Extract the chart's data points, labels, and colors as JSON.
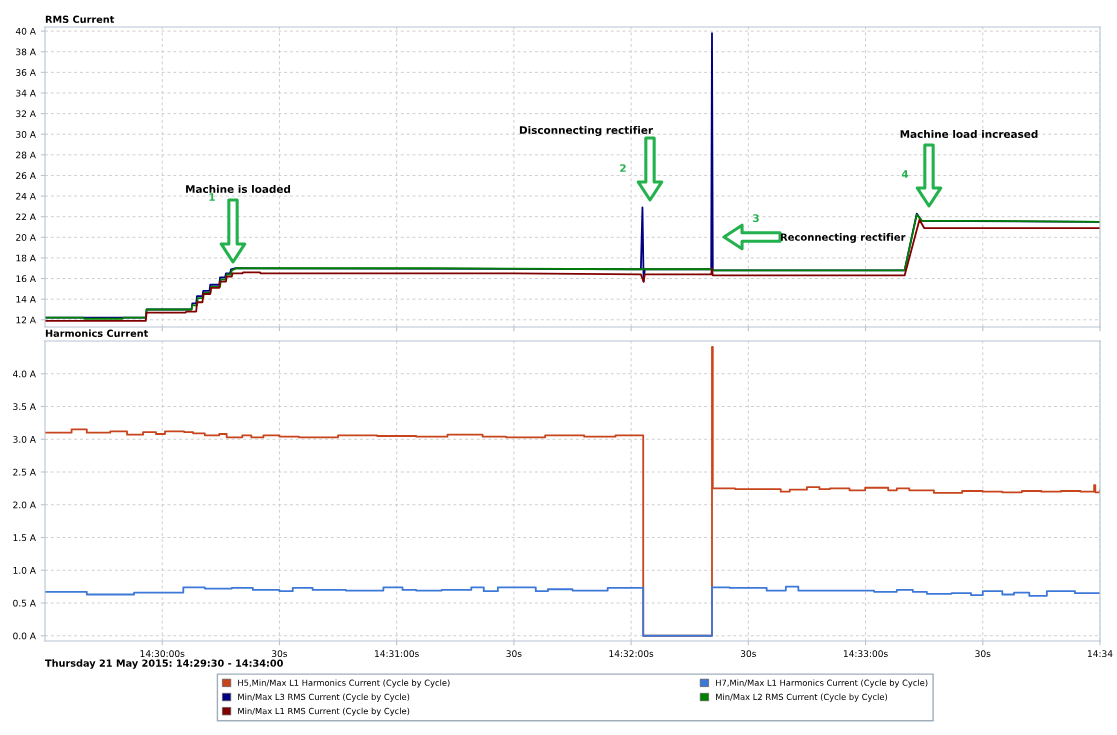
{
  "chart_data": [
    {
      "type": "line",
      "title": "RMS Current",
      "xlim": [
        "2015-05-21T14:29:30",
        "2015-05-21T14:34:00"
      ],
      "ylim": [
        11.3,
        40.4
      ],
      "xticks": [
        {
          "value": "2015-05-21T14:30:00",
          "label": null
        },
        {
          "value": "2015-05-21T14:30:30",
          "label": null
        },
        {
          "value": "2015-05-21T14:31:00",
          "label": null
        },
        {
          "value": "2015-05-21T14:31:30",
          "label": null
        },
        {
          "value": "2015-05-21T14:32:00",
          "label": null
        },
        {
          "value": "2015-05-21T14:32:30",
          "label": null
        },
        {
          "value": "2015-05-21T14:33:00",
          "label": null
        },
        {
          "value": "2015-05-21T14:33:30",
          "label": null
        },
        {
          "value": "2015-05-21T14:34:00",
          "label": null
        }
      ],
      "yticks": [
        {
          "value": 12,
          "label": "12 A"
        },
        {
          "value": 14,
          "label": "14 A"
        },
        {
          "value": 16,
          "label": "16 A"
        },
        {
          "value": 18,
          "label": "18 A"
        },
        {
          "value": 20,
          "label": "20 A"
        },
        {
          "value": 22,
          "label": "22 A"
        },
        {
          "value": 24,
          "label": "24 A"
        },
        {
          "value": 26,
          "label": "26 A"
        },
        {
          "value": 28,
          "label": "28 A"
        },
        {
          "value": 30,
          "label": "30 A"
        },
        {
          "value": 32,
          "label": "32 A"
        },
        {
          "value": 34,
          "label": "34 A"
        },
        {
          "value": 36,
          "label": "36 A"
        },
        {
          "value": 38,
          "label": "38 A"
        },
        {
          "value": 40,
          "label": "40 A"
        }
      ],
      "tick_labels": "y",
      "grid": true,
      "legend": "bottom",
      "series": [
        {
          "name": "Min/Max L3 RMS Current (Cycle by Cycle)",
          "color": "#000080",
          "x": [
            "2015-05-21T14:29:30",
            "2015-05-21T14:29:55.8",
            "2015-05-21T14:29:56",
            "2015-05-21T14:30:07.5",
            "2015-05-21T14:30:07.7",
            "2015-05-21T14:30:08.7",
            "2015-05-21T14:30:08.9",
            "2015-05-21T14:30:10.3",
            "2015-05-21T14:30:10.5",
            "2015-05-21T14:30:12.1",
            "2015-05-21T14:30:12.3",
            "2015-05-21T14:30:14.6",
            "2015-05-21T14:30:14.8",
            "2015-05-21T14:30:16.1",
            "2015-05-21T14:30:16.3",
            "2015-05-21T14:30:17.4",
            "2015-05-21T14:30:17.6",
            "2015-05-21T14:30:18.8",
            "2015-05-21T14:32:02.5",
            "2015-05-21T14:32:02.9",
            "2015-05-21T14:32:03.2",
            "2015-05-21T14:32:03.5",
            "2015-05-21T14:32:20.5",
            "2015-05-21T14:32:20.7",
            "2015-05-21T14:32:20.9",
            "2015-05-21T14:33:10",
            "2015-05-21T14:33:13.1",
            "2015-05-21T14:33:14.3",
            "2015-05-21T14:34:00"
          ],
          "values": [
            12.2,
            12.2,
            13.0,
            13.0,
            13.6,
            13.6,
            14.3,
            14.3,
            14.8,
            14.8,
            15.4,
            15.4,
            16.1,
            16.1,
            16.5,
            16.5,
            16.9,
            17.0,
            16.9,
            22.9,
            15.7,
            16.9,
            16.9,
            39.8,
            16.8,
            16.8,
            22.3,
            21.6,
            21.5
          ]
        },
        {
          "name": "Min/Max L2 RMS Current (Cycle by Cycle)",
          "color": "#008000",
          "x": [
            "2015-05-21T14:29:30",
            "2015-05-21T14:29:39.8",
            "2015-05-21T14:29:40",
            "2015-05-21T14:29:49.8",
            "2015-05-21T14:29:50",
            "2015-05-21T14:29:55.8",
            "2015-05-21T14:29:56",
            "2015-05-21T14:30:07.5",
            "2015-05-21T14:30:07.7",
            "2015-05-21T14:30:08.9",
            "2015-05-21T14:30:09.1",
            "2015-05-21T14:30:10.5",
            "2015-05-21T14:30:10.7",
            "2015-05-21T14:30:12.3",
            "2015-05-21T14:30:12.5",
            "2015-05-21T14:30:14.8",
            "2015-05-21T14:30:15",
            "2015-05-21T14:30:16.3",
            "2015-05-21T14:30:16.5",
            "2015-05-21T14:30:17.6",
            "2015-05-21T14:30:17.8",
            "2015-05-21T14:30:19",
            "2015-05-21T14:31:10",
            "2015-05-21T14:32:00",
            "2015-05-21T14:32:20.5",
            "2015-05-21T14:32:20.9",
            "2015-05-21T14:33:10",
            "2015-05-21T14:33:13.1",
            "2015-05-21T14:33:14.5",
            "2015-05-21T14:33:30",
            "2015-05-21T14:34:00"
          ],
          "values": [
            12.2,
            12.2,
            12.1,
            12.1,
            12.2,
            12.2,
            13.0,
            13.0,
            13.4,
            13.4,
            14.1,
            14.1,
            14.6,
            14.6,
            15.2,
            15.2,
            15.9,
            15.9,
            16.4,
            16.4,
            16.8,
            17.0,
            17.0,
            16.9,
            16.9,
            16.8,
            16.8,
            22.2,
            21.6,
            21.6,
            21.5
          ]
        },
        {
          "name": "Min/Max L1 RMS Current (Cycle by Cycle)",
          "color": "#800000",
          "x": [
            "2015-05-21T14:29:30",
            "2015-05-21T14:29:55.8",
            "2015-05-21T14:29:56",
            "2015-05-21T14:30:06",
            "2015-05-21T14:30:06.2",
            "2015-05-21T14:30:08.7",
            "2015-05-21T14:30:08.9",
            "2015-05-21T14:30:10.3",
            "2015-05-21T14:30:10.5",
            "2015-05-21T14:30:12.3",
            "2015-05-21T14:30:12.5",
            "2015-05-21T14:30:14.6",
            "2015-05-21T14:30:14.8",
            "2015-05-21T14:30:16.3",
            "2015-05-21T14:30:16.5",
            "2015-05-21T14:30:17.8",
            "2015-05-21T14:30:18",
            "2015-05-21T14:30:20.5",
            "2015-05-21T14:30:20.7",
            "2015-05-21T14:30:25",
            "2015-05-21T14:30:25.2",
            "2015-05-21T14:31:30",
            "2015-05-21T14:32:02.5",
            "2015-05-21T14:32:03.2",
            "2015-05-21T14:32:03.5",
            "2015-05-21T14:32:20.5",
            "2015-05-21T14:32:20.7",
            "2015-05-21T14:32:20.9",
            "2015-05-21T14:33:10",
            "2015-05-21T14:33:13.8",
            "2015-05-21T14:33:15",
            "2015-05-21T14:34:00"
          ],
          "values": [
            11.9,
            11.9,
            12.7,
            12.7,
            12.8,
            12.8,
            13.7,
            13.7,
            14.5,
            14.5,
            15.1,
            15.1,
            15.7,
            15.7,
            16.2,
            16.2,
            16.5,
            16.5,
            16.6,
            16.6,
            16.5,
            16.5,
            16.4,
            15.7,
            16.4,
            16.4,
            17.0,
            16.3,
            16.3,
            21.7,
            20.9,
            20.9
          ]
        }
      ],
      "annotations": [
        "Machine is loaded",
        "1",
        "Disconnecting rectifier",
        "2",
        "Reconnecting rectifier",
        "3",
        "Machine load increased",
        "4"
      ]
    },
    {
      "type": "step",
      "title": "Harmonics Current",
      "xlim": [
        "2015-05-21T14:29:30",
        "2015-05-21T14:34:00"
      ],
      "ylim": [
        -0.08,
        4.5
      ],
      "xticks": [
        {
          "value": "2015-05-21T14:30:00",
          "label": "14:30:00s"
        },
        {
          "value": "2015-05-21T14:30:30",
          "label": "30s"
        },
        {
          "value": "2015-05-21T14:31:00",
          "label": "14:31:00s"
        },
        {
          "value": "2015-05-21T14:31:30",
          "label": "30s"
        },
        {
          "value": "2015-05-21T14:32:00",
          "label": "14:32:00s"
        },
        {
          "value": "2015-05-21T14:32:30",
          "label": "30s"
        },
        {
          "value": "2015-05-21T14:33:00",
          "label": "14:33:00s"
        },
        {
          "value": "2015-05-21T14:33:30",
          "label": "30s"
        },
        {
          "value": "2015-05-21T14:34:00",
          "label": "14:34"
        }
      ],
      "yticks": [
        {
          "value": 0,
          "label": "0.0 A"
        },
        {
          "value": 0.5,
          "label": "0.5 A"
        },
        {
          "value": 1,
          "label": "1.0 A"
        },
        {
          "value": 1.5,
          "label": "1.5 A"
        },
        {
          "value": 2,
          "label": "2.0 A"
        },
        {
          "value": 2.5,
          "label": "2.5 A"
        },
        {
          "value": 3,
          "label": "3.0 A"
        },
        {
          "value": 3.5,
          "label": "3.5 A"
        },
        {
          "value": 4,
          "label": "4.0 A"
        }
      ],
      "grid": true,
      "legend": "bottom",
      "series": [
        {
          "name": "H5,Min/Max L1 Harmonics Current (Cycle by Cycle)",
          "color": "#c8441c",
          "x": [
            "2015-05-21T14:29:30",
            "2015-05-21T14:29:36.8",
            "2015-05-21T14:29:40.7",
            "2015-05-21T14:29:46.7",
            "2015-05-21T14:29:51",
            "2015-05-21T14:29:55.1",
            "2015-05-21T14:29:58.4",
            "2015-05-21T14:30:00.7",
            "2015-05-21T14:30:05.6",
            "2015-05-21T14:30:07.9",
            "2015-05-21T14:30:10.9",
            "2015-05-21T14:30:14.6",
            "2015-05-21T14:30:16.5",
            "2015-05-21T14:30:20.5",
            "2015-05-21T14:30:22.8",
            "2015-05-21T14:30:25.9",
            "2015-05-21T14:30:30",
            "2015-05-21T14:30:35",
            "2015-05-21T14:30:45",
            "2015-05-21T14:30:55",
            "2015-05-21T14:31:05",
            "2015-05-21T14:31:13",
            "2015-05-21T14:31:22",
            "2015-05-21T14:31:28",
            "2015-05-21T14:31:38",
            "2015-05-21T14:31:48",
            "2015-05-21T14:31:56",
            "2015-05-21T14:32:03.1",
            "2015-05-21T14:32:20.7",
            "2015-05-21T14:32:20.9",
            "2015-05-21T14:32:26.6",
            "2015-05-21T14:32:38.3",
            "2015-05-21T14:32:40.6",
            "2015-05-21T14:32:45",
            "2015-05-21T14:32:48.2",
            "2015-05-21T14:32:50.9",
            "2015-05-21T14:32:55.9",
            "2015-05-21T14:32:59.9",
            "2015-05-21T14:33:05.8",
            "2015-05-21T14:33:08",
            "2015-05-21T14:33:11.2",
            "2015-05-21T14:33:17.5",
            "2015-05-21T14:33:24.7",
            "2015-05-21T14:33:30",
            "2015-05-21T14:33:35",
            "2015-05-21T14:33:40",
            "2015-05-21T14:33:45",
            "2015-05-21T14:33:50",
            "2015-05-21T14:33:55",
            "2015-05-21T14:33:58.5",
            "2015-05-21T14:33:58.8",
            "2015-05-21T14:34:00"
          ],
          "values": [
            3.1,
            3.15,
            3.1,
            3.12,
            3.07,
            3.11,
            3.08,
            3.12,
            3.11,
            3.09,
            3.06,
            3.08,
            3.03,
            3.06,
            3.03,
            3.06,
            3.04,
            3.03,
            3.06,
            3.05,
            3.04,
            3.07,
            3.04,
            3.03,
            3.06,
            3.04,
            3.06,
            0,
            4.41,
            2.25,
            2.24,
            2.2,
            2.23,
            2.27,
            2.24,
            2.25,
            2.22,
            2.26,
            2.22,
            2.25,
            2.22,
            2.18,
            2.21,
            2.2,
            2.19,
            2.21,
            2.2,
            2.21,
            2.2,
            2.3,
            2.19,
            2.22
          ]
        },
        {
          "name": "H7,Min/Max L1 Harmonics Current (Cycle by Cycle)",
          "color": "#3c78d8",
          "x": [
            "2015-05-21T14:29:30",
            "2015-05-21T14:29:40.7",
            "2015-05-21T14:29:52.8",
            "2015-05-21T14:30:05.4",
            "2015-05-21T14:30:10.9",
            "2015-05-21T14:30:17.8",
            "2015-05-21T14:30:23.2",
            "2015-05-21T14:30:30",
            "2015-05-21T14:30:33.4",
            "2015-05-21T14:30:38.5",
            "2015-05-21T14:30:47",
            "2015-05-21T14:30:56.6",
            "2015-05-21T14:31:01.5",
            "2015-05-21T14:31:05",
            "2015-05-21T14:31:11.5",
            "2015-05-21T14:31:19.1",
            "2015-05-21T14:31:22.3",
            "2015-05-21T14:31:25.9",
            "2015-05-21T14:31:35.6",
            "2015-05-21T14:31:38.7",
            "2015-05-21T14:31:45",
            "2015-05-21T14:31:54",
            "2015-05-21T14:32:03.1",
            "2015-05-21T14:32:20.7",
            "2015-05-21T14:32:25.2",
            "2015-05-21T14:32:34.7",
            "2015-05-21T14:32:39.6",
            "2015-05-21T14:32:42.8",
            "2015-05-21T14:33:02.2",
            "2015-05-21T14:33:08",
            "2015-05-21T14:33:12.1",
            "2015-05-21T14:33:15.7",
            "2015-05-21T14:33:22",
            "2015-05-21T14:33:27",
            "2015-05-21T14:33:30",
            "2015-05-21T14:33:35",
            "2015-05-21T14:33:38",
            "2015-05-21T14:33:41.9",
            "2015-05-21T14:33:46.4",
            "2015-05-21T14:33:53.6",
            "2015-05-21T14:34:00"
          ],
          "values": [
            0.67,
            0.63,
            0.66,
            0.74,
            0.72,
            0.73,
            0.7,
            0.68,
            0.73,
            0.7,
            0.69,
            0.74,
            0.7,
            0.69,
            0.7,
            0.74,
            0.68,
            0.74,
            0.68,
            0.71,
            0.69,
            0.73,
            0,
            0.74,
            0.73,
            0.69,
            0.75,
            0.69,
            0.67,
            0.7,
            0.67,
            0.64,
            0.65,
            0.62,
            0.68,
            0.63,
            0.66,
            0.61,
            0.68,
            0.65,
            0.65
          ]
        }
      ],
      "annotations": [
        "Thursday 21 May 2015: 14:29:30 - 14:34:00"
      ]
    }
  ]
}
